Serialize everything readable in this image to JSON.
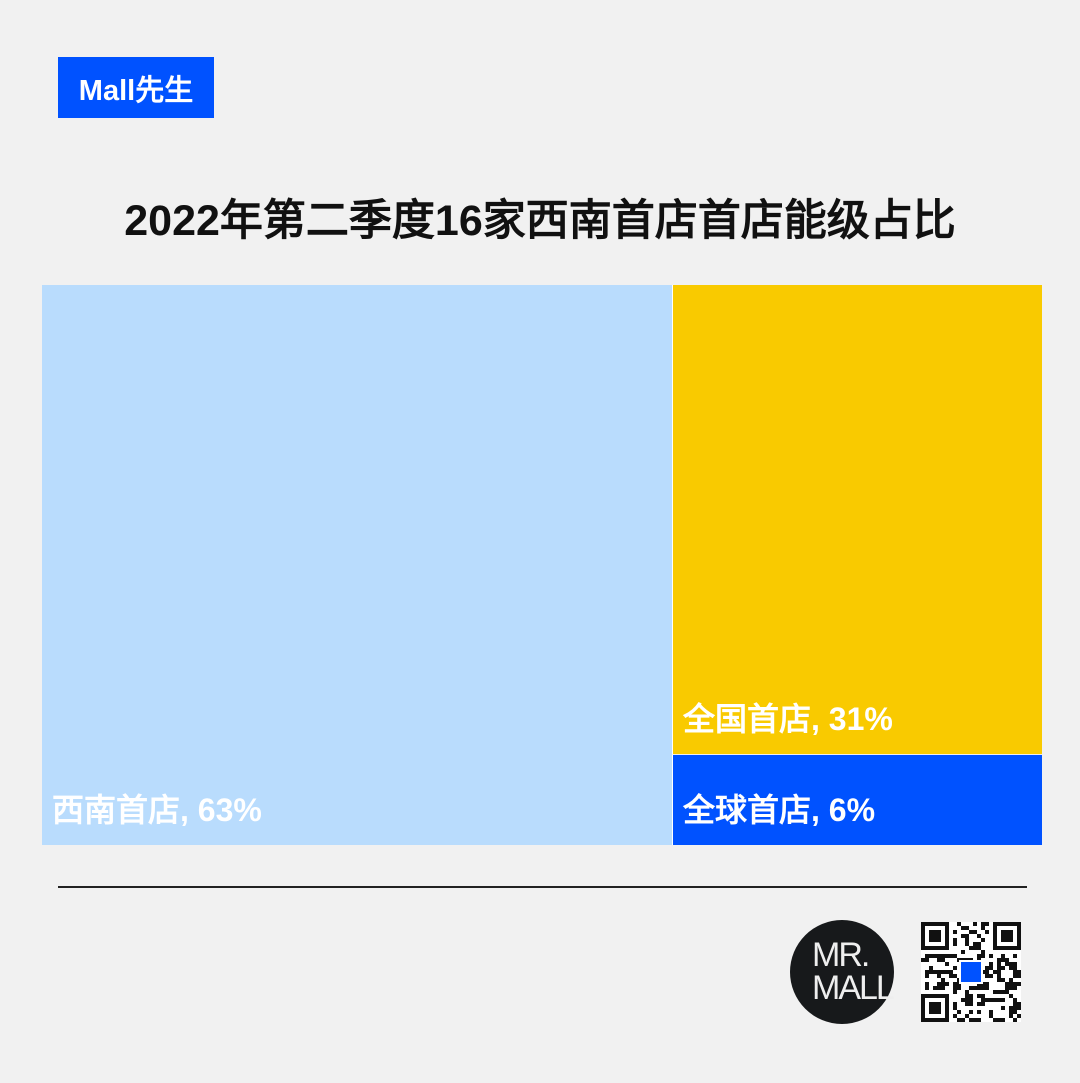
{
  "brand": {
    "label": "Mall先生",
    "color": "#0052ff"
  },
  "chart_data": {
    "type": "treemap",
    "title": "2022年第二季度16家西南首店首店能级占比",
    "items": [
      {
        "name": "西南首店",
        "value": 63,
        "label": "西南首店, 63%",
        "color": "#b9dcfd"
      },
      {
        "name": "全国首店",
        "value": 31,
        "label": "全国首店, 31%",
        "color": "#f9ca00"
      },
      {
        "name": "全球首店",
        "value": 6,
        "label": "全球首店, 6%",
        "color": "#0052ff"
      }
    ]
  },
  "footer": {
    "logo_text": [
      "MR.",
      "MALL"
    ],
    "qr_icon": "qr-code-icon"
  }
}
